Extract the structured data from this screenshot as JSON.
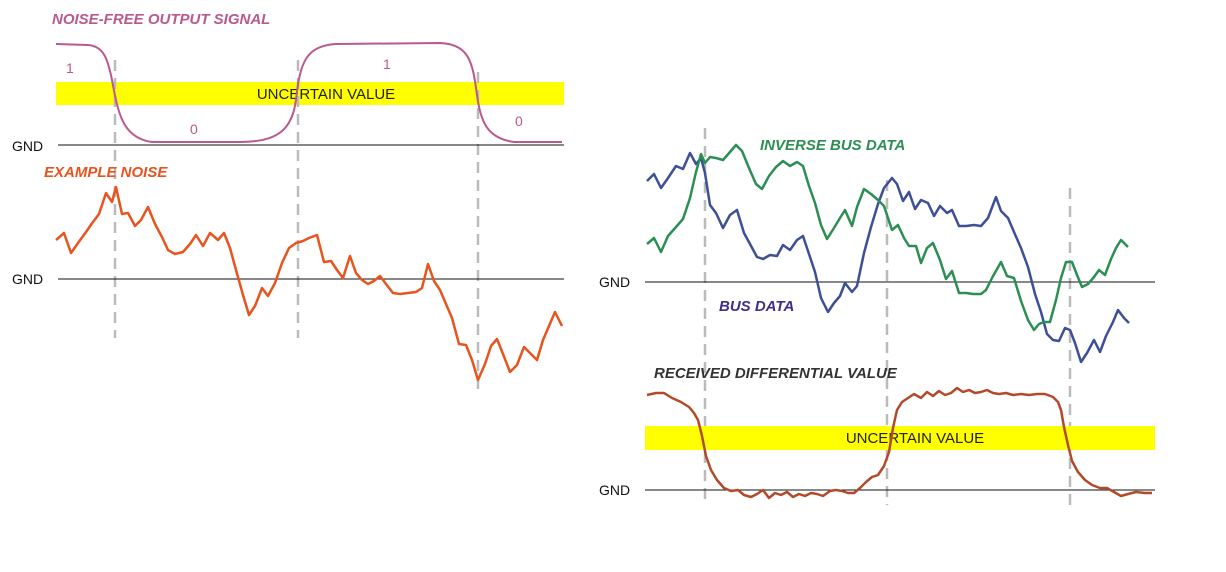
{
  "left": {
    "title_signal": "NOISE-FREE OUTPUT SIGNAL",
    "title_noise": "EXAMPLE NOISE",
    "band_label": "UNCERTAIN VALUE",
    "gnd_top": "GND",
    "gnd_noise": "GND",
    "digits": [
      "1",
      "0",
      "1",
      "0"
    ]
  },
  "right": {
    "title_inverse": "INVERSE BUS DATA",
    "title_bus": "BUS DATA",
    "title_received": "RECEIVED DIFFERENTIAL VALUE",
    "band_label": "UNCERTAIN VALUE",
    "gnd_bus": "GND",
    "gnd_received": "GND"
  },
  "colors": {
    "signal": "#b9598f",
    "noise": "#e8541e",
    "inverse_bus": "#2b8f53",
    "bus": "#3d4f97",
    "received": "#b24a2a",
    "band": "#ffff00",
    "divider": "#bbbbbb",
    "title_received": "#333333",
    "title_bus": "#3f2e8a"
  }
}
